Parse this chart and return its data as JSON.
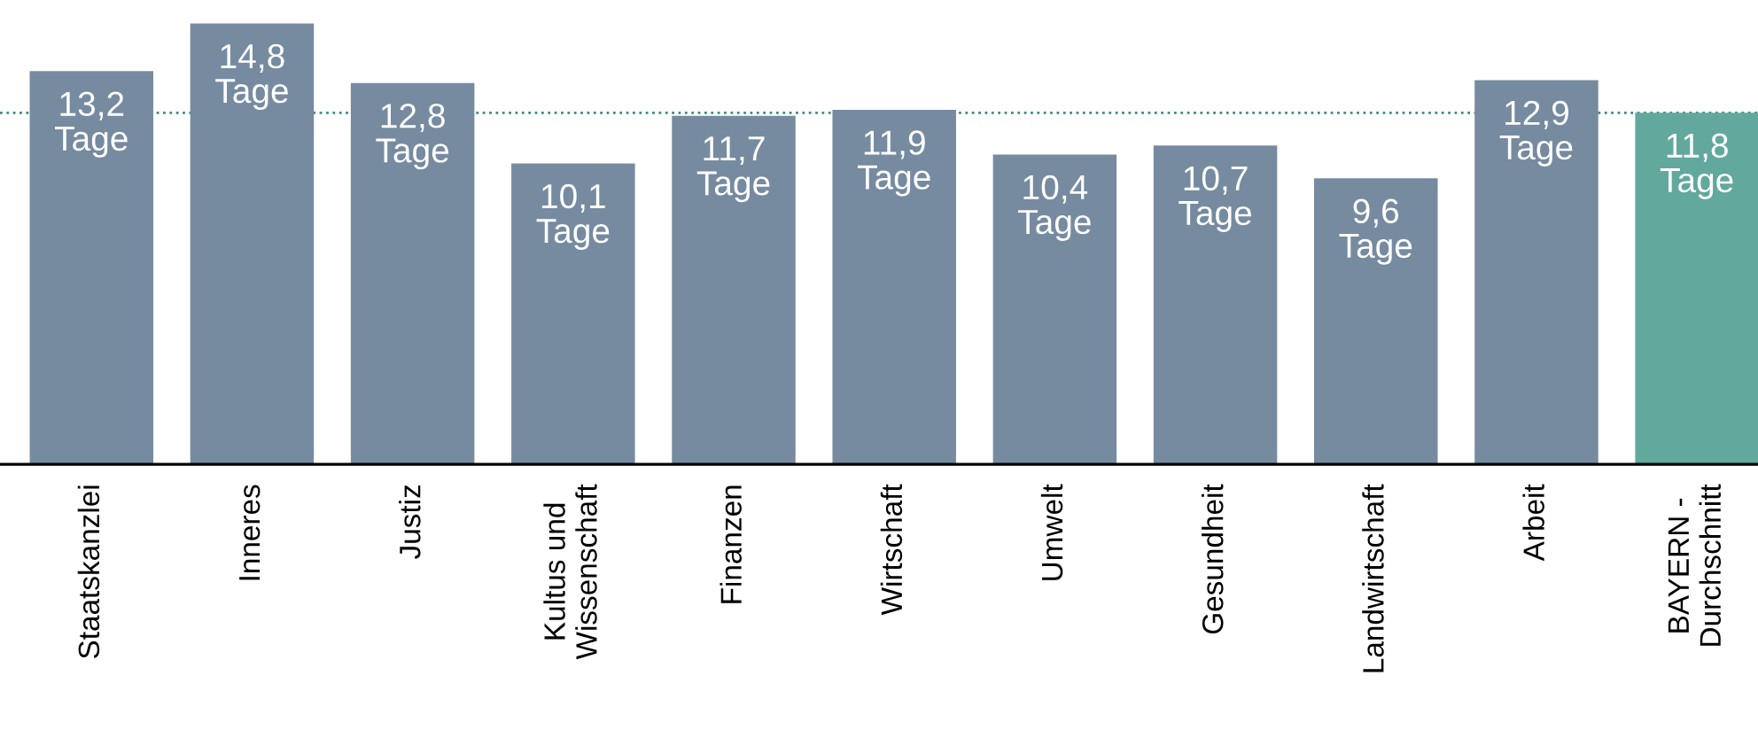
{
  "chart_data": {
    "type": "bar",
    "categories": [
      "Staatskanzlei",
      "Inneres",
      "Justiz",
      "Kultus und\nWissenschaft",
      "Finanzen",
      "Wirtschaft",
      "Umwelt",
      "Gesundheit",
      "Landwirtschaft",
      "Arbeit",
      "BAYERN -\nDurchschnitt"
    ],
    "values": [
      13.2,
      14.8,
      12.8,
      10.1,
      11.7,
      11.9,
      10.4,
      10.7,
      9.6,
      12.9,
      11.8
    ],
    "colors": [
      "#768ba0",
      "#768ba0",
      "#768ba0",
      "#768ba0",
      "#768ba0",
      "#768ba0",
      "#768ba0",
      "#768ba0",
      "#768ba0",
      "#768ba0",
      "#62a89d"
    ],
    "value_labels": [
      "13,2\nTage",
      "14,8\nTage",
      "12,8\nTage",
      "10,1\nTage",
      "11,7\nTage",
      "11,9\nTage",
      "10,4\nTage",
      "10,7\nTage",
      "9,6\nTage",
      "12,9\nTage",
      "11,8\nTage"
    ],
    "ylim": [
      0,
      15
    ],
    "tick_labels": "x",
    "grid": false,
    "legend": false,
    "ref_lines": [
      {
        "axis": "y",
        "value": 11.8,
        "label": null,
        "color": "#3d8c80",
        "line_style": "dotted"
      }
    ]
  }
}
